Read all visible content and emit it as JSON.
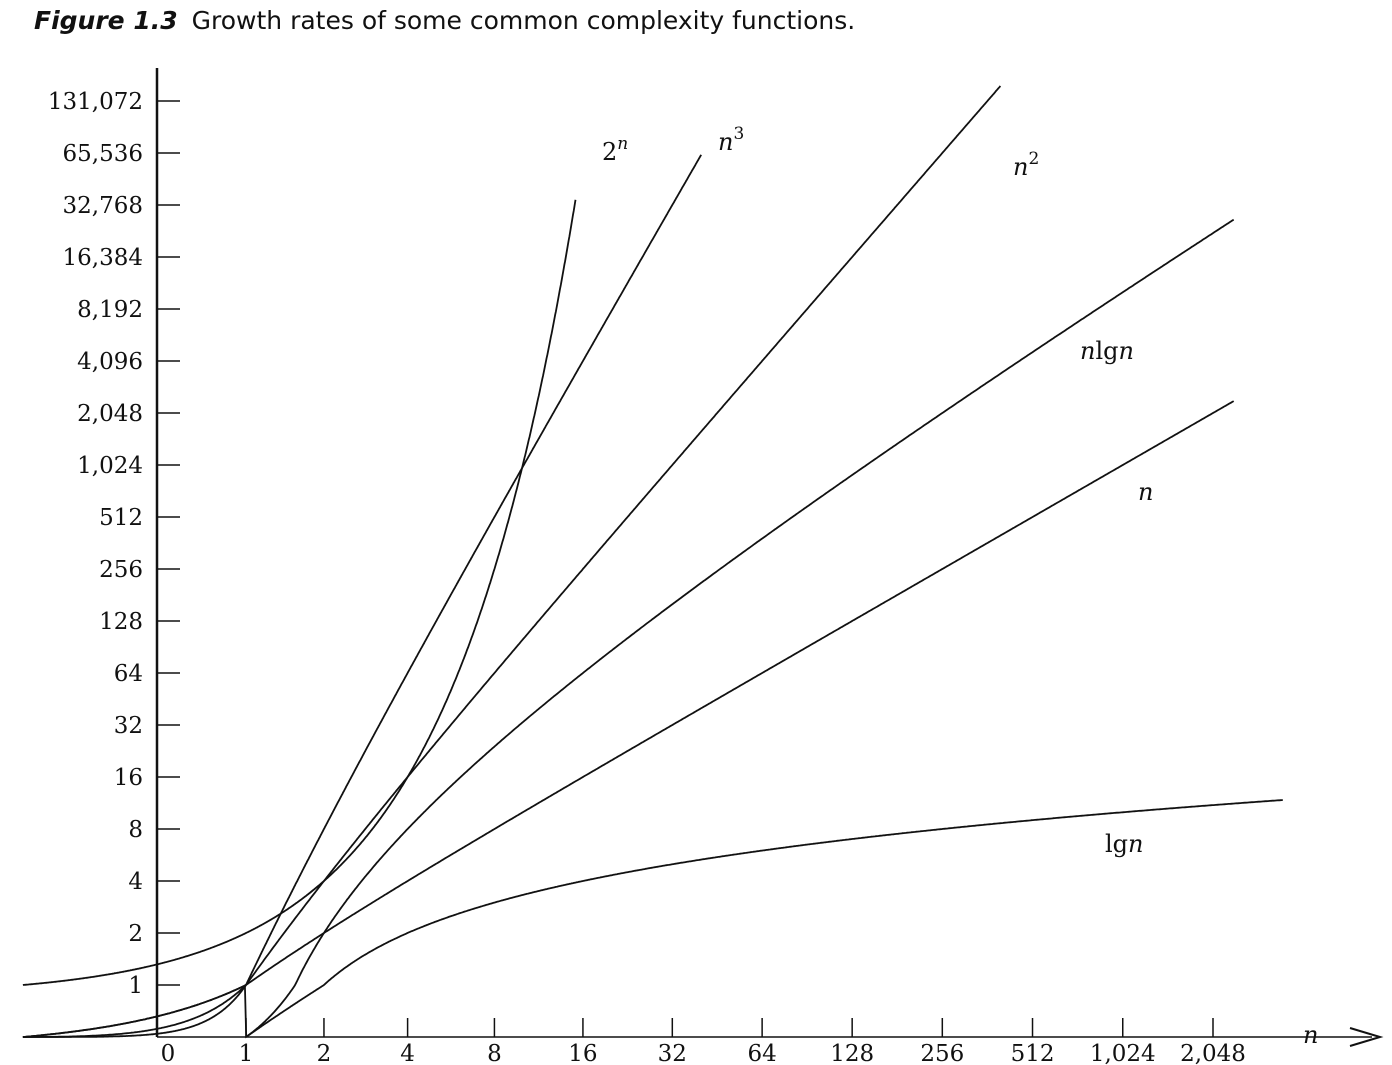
{
  "figure": {
    "number": "Figure 1.3",
    "caption": "Growth rates of some common complexity functions."
  },
  "chart_data": {
    "type": "line",
    "title": "Growth rates of some common complexity functions.",
    "xlabel": "n",
    "ylabel": "",
    "x_scale": "log2",
    "y_scale": "log2",
    "x_ticks": [
      {
        "value": 0,
        "label": "0"
      },
      {
        "value": 1,
        "label": "1"
      },
      {
        "value": 2,
        "label": "2"
      },
      {
        "value": 4,
        "label": "4"
      },
      {
        "value": 8,
        "label": "8"
      },
      {
        "value": 16,
        "label": "16"
      },
      {
        "value": 32,
        "label": "32"
      },
      {
        "value": 64,
        "label": "64"
      },
      {
        "value": 128,
        "label": "128"
      },
      {
        "value": 256,
        "label": "256"
      },
      {
        "value": 512,
        "label": "512"
      },
      {
        "value": 1024,
        "label": "1,024"
      },
      {
        "value": 2048,
        "label": "2,048"
      }
    ],
    "y_ticks": [
      {
        "value": 1,
        "label": "1"
      },
      {
        "value": 2,
        "label": "2"
      },
      {
        "value": 4,
        "label": "4"
      },
      {
        "value": 8,
        "label": "8"
      },
      {
        "value": 16,
        "label": "16"
      },
      {
        "value": 32,
        "label": "32"
      },
      {
        "value": 64,
        "label": "64"
      },
      {
        "value": 128,
        "label": "128"
      },
      {
        "value": 256,
        "label": "256"
      },
      {
        "value": 512,
        "label": "512"
      },
      {
        "value": 1024,
        "label": "1,024"
      },
      {
        "value": 2048,
        "label": "2,048"
      },
      {
        "value": 4096,
        "label": "4,096"
      },
      {
        "value": 8192,
        "label": "8,192"
      },
      {
        "value": 16384,
        "label": "16,384"
      },
      {
        "value": 32768,
        "label": "32,768"
      },
      {
        "value": 65536,
        "label": "65,536"
      },
      {
        "value": 131072,
        "label": "131,072"
      }
    ],
    "series": [
      {
        "name": "2^n",
        "label_base": "2",
        "label_sup": "n",
        "label_suffix": "",
        "label_style": "normal",
        "function": "2^n",
        "x_range": [
          0,
          15.1
        ]
      },
      {
        "name": "n^3",
        "label_base": "n",
        "label_sup": "3",
        "label_suffix": "",
        "label_style": "italic",
        "function": "n^3",
        "x_range": [
          0,
          40
        ]
      },
      {
        "name": "n^2",
        "label_base": "n",
        "label_sup": "2",
        "label_suffix": "",
        "label_style": "italic",
        "function": "n^2",
        "x_range": [
          0,
          400
        ]
      },
      {
        "name": "n lg n",
        "label_base": "nlgn",
        "label_sup": "",
        "label_suffix": "",
        "label_style": "mixed",
        "function": "n*lg(n)",
        "x_range": [
          0,
          2400
        ]
      },
      {
        "name": "n",
        "label_base": "n",
        "label_sup": "",
        "label_suffix": "",
        "label_style": "italic",
        "function": "n",
        "x_range": [
          0,
          2400
        ]
      },
      {
        "name": "lg n",
        "label_base": "lgn",
        "label_sup": "",
        "label_suffix": "",
        "label_style": "mixed",
        "function": "lg(n)",
        "x_range": [
          1,
          3500
        ]
      }
    ]
  }
}
